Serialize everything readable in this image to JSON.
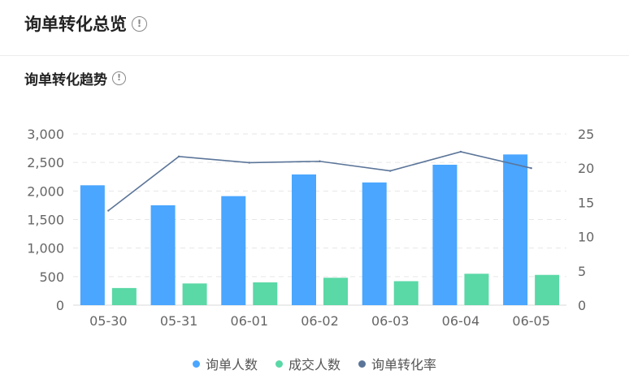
{
  "header": {
    "title": "询单转化总览",
    "info_icon": "info-icon"
  },
  "section": {
    "title": "询单转化趋势",
    "info_icon": "info-icon"
  },
  "chart_data": {
    "type": "bar",
    "categories": [
      "05-30",
      "05-31",
      "06-01",
      "06-02",
      "06-03",
      "06-04",
      "06-05"
    ],
    "series": [
      {
        "name": "询单人数",
        "type": "bar",
        "axis": "left",
        "color": "#4aa6ff",
        "values": [
          2100,
          1750,
          1910,
          2290,
          2150,
          2460,
          2640
        ]
      },
      {
        "name": "成交人数",
        "type": "bar",
        "axis": "left",
        "color": "#5ad8a6",
        "values": [
          300,
          380,
          400,
          480,
          420,
          550,
          530
        ]
      },
      {
        "name": "询单转化率",
        "type": "line",
        "axis": "right",
        "color": "#5b7599",
        "values": [
          13.8,
          21.7,
          20.8,
          21.0,
          19.6,
          22.4,
          20.0
        ]
      }
    ],
    "y_left": {
      "ylim": [
        0,
        3000
      ],
      "ticks": [
        "0",
        "500",
        "1,000",
        "1,500",
        "2,000",
        "2,500",
        "3,000"
      ]
    },
    "y_right": {
      "ylim": [
        0,
        25
      ],
      "ticks": [
        "0",
        "5",
        "10",
        "15",
        "20",
        "25"
      ]
    },
    "grid": true,
    "legend_position": "bottom"
  }
}
